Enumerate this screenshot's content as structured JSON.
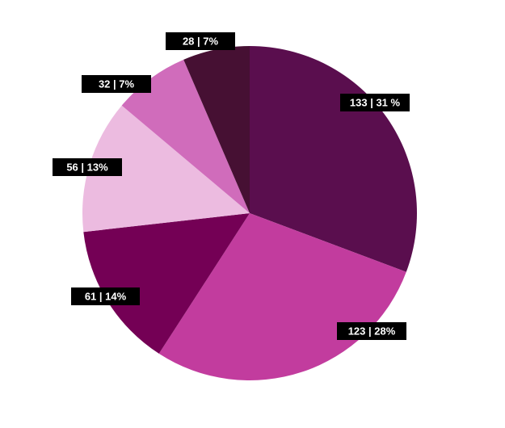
{
  "chart_data": {
    "type": "pie",
    "start_angle_deg": 0,
    "direction": "clockwise",
    "slices": [
      {
        "value": 133,
        "label": "133 | 31 %",
        "color": "#5a0e4e"
      },
      {
        "value": 123,
        "label": "123 | 28%",
        "color": "#c23c9e"
      },
      {
        "value": 61,
        "label": "61 | 14%",
        "color": "#740055"
      },
      {
        "value": 56,
        "label": "56 | 13%",
        "color": "#ecbbe0"
      },
      {
        "value": 32,
        "label": "32 | 7%",
        "color": "#d06cbb"
      },
      {
        "value": 28,
        "label": "28 | 7%",
        "color": "#461033"
      }
    ],
    "label_style": {
      "background": "#000000",
      "text_color": "#ffffff"
    }
  }
}
